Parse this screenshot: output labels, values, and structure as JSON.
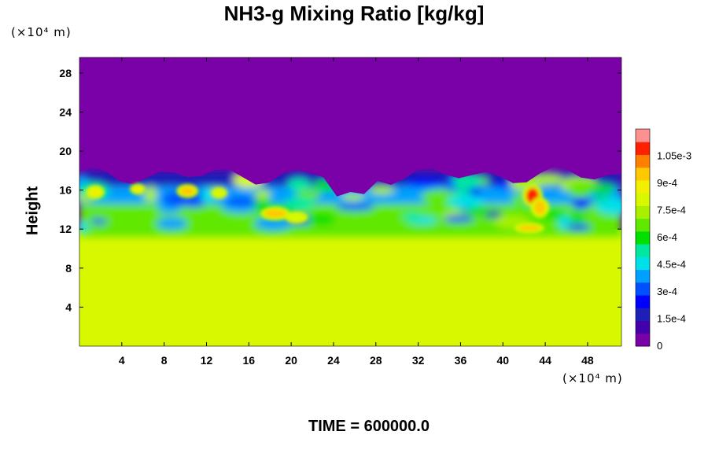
{
  "chart_data": {
    "type": "heatmap",
    "title": "NH3-g Mixing Ratio [kg/kg]",
    "xlabel": "",
    "ylabel": "Height",
    "x_unit": "(×10⁴ m)",
    "y_unit": "(×10⁴ m)",
    "xlim": [
      0,
      51.2
    ],
    "ylim": [
      0,
      29.6
    ],
    "x_ticks": [
      4,
      8,
      12,
      16,
      20,
      24,
      28,
      32,
      36,
      40,
      44,
      48
    ],
    "y_ticks": [
      4,
      8,
      12,
      16,
      20,
      24,
      28
    ],
    "colorbar": {
      "min": 0,
      "max": 0.0012,
      "ticks": [
        {
          "value": 0,
          "label": "0"
        },
        {
          "value": 0.00015,
          "label": "1.5e-4"
        },
        {
          "value": 0.0003,
          "label": "3e-4"
        },
        {
          "value": 0.00045,
          "label": "4.5e-4"
        },
        {
          "value": 0.0006,
          "label": "6e-4"
        },
        {
          "value": 0.00075,
          "label": "7.5e-4"
        },
        {
          "value": 0.0009,
          "label": "9e-4"
        },
        {
          "value": 0.00105,
          "label": "1.05e-3"
        }
      ],
      "colors": [
        "#7a00a8",
        "#4400aa",
        "#1e1eb8",
        "#0000ff",
        "#0050ff",
        "#00a0ff",
        "#00e0e8",
        "#00e8a0",
        "#00e000",
        "#60e800",
        "#a8f000",
        "#d8f800",
        "#f0f000",
        "#ffc800",
        "#ff8000",
        "#ff2000",
        "#ff9090"
      ]
    },
    "regions": [
      {
        "y_range": [
          17.5,
          29.6
        ],
        "value": 0,
        "description": "upper layer"
      },
      {
        "y_range": [
          13,
          17.5
        ],
        "value_range": [
          0,
          0.00105
        ],
        "description": "mixed turbulent layer"
      },
      {
        "y_range": [
          0,
          12
        ],
        "value": 0.00078,
        "description": "lower uniform layer"
      }
    ],
    "time_label": "TIME = 600000.0"
  }
}
